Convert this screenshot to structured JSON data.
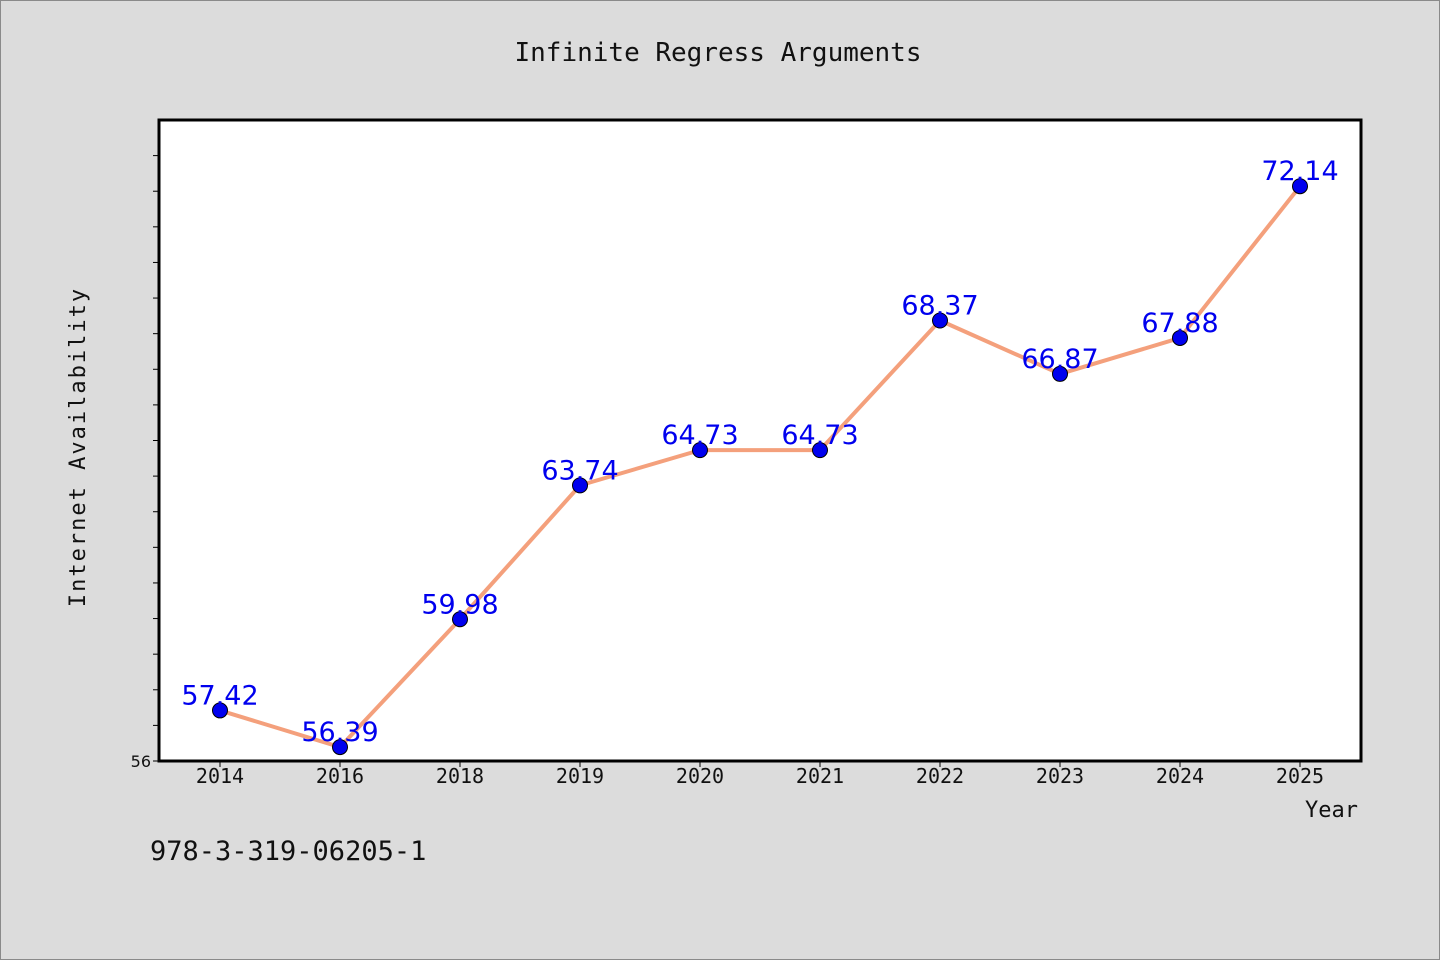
{
  "chart_data": {
    "type": "line",
    "title": "Infinite Regress Arguments",
    "xlabel": "Year",
    "ylabel": "Internet Availability",
    "categories": [
      "2014",
      "2016",
      "2018",
      "2019",
      "2020",
      "2021",
      "2022",
      "2023",
      "2024",
      "2025"
    ],
    "values": [
      57.42,
      56.39,
      59.98,
      63.74,
      64.73,
      64.73,
      68.37,
      66.87,
      67.88,
      72.14
    ],
    "data_labels": [
      "57.42",
      "56.39",
      "59.98",
      "63.74",
      "64.73",
      "64.73",
      "68.37",
      "66.87",
      "67.88",
      "72.14"
    ],
    "ylim": [
      56,
      74
    ],
    "y_tick_labels": [
      "56"
    ],
    "grid": false,
    "colors": {
      "line": "#f4a07c",
      "marker": "#0000ee",
      "label": "#0000ee",
      "background": "#dcdcdc",
      "plot": "#ffffff"
    }
  },
  "footer": {
    "isbn": "978-3-319-06205-1"
  }
}
